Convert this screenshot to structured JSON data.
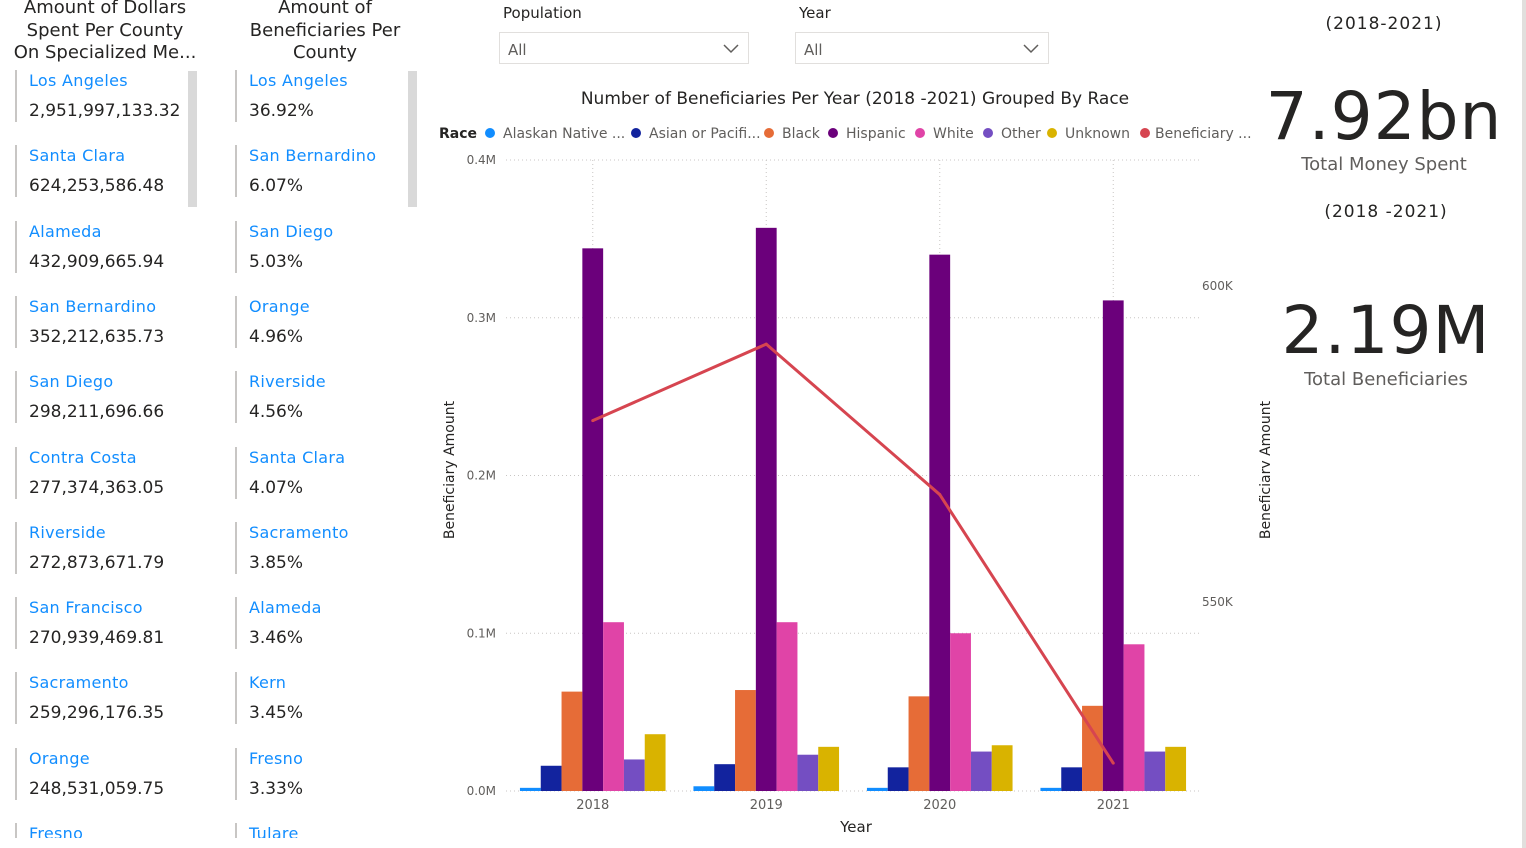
{
  "left_card": {
    "title_lines": [
      "Amount of Dollars",
      "Spent Per County",
      "On Specialized Me..."
    ],
    "items": [
      {
        "name": "Los Angeles",
        "value": "2,951,997,133.32"
      },
      {
        "name": "Santa Clara",
        "value": "624,253,586.48"
      },
      {
        "name": "Alameda",
        "value": "432,909,665.94"
      },
      {
        "name": "San Bernardino",
        "value": "352,212,635.73"
      },
      {
        "name": "San Diego",
        "value": "298,211,696.66"
      },
      {
        "name": "Contra Costa",
        "value": "277,374,363.05"
      },
      {
        "name": "Riverside",
        "value": "272,873,671.79"
      },
      {
        "name": "San Francisco",
        "value": "270,939,469.81"
      },
      {
        "name": "Sacramento",
        "value": "259,296,176.35"
      },
      {
        "name": "Orange",
        "value": "248,531,059.75"
      },
      {
        "name": "Fresno",
        "value": ""
      }
    ]
  },
  "mid_card": {
    "title_lines": [
      "Amount of",
      "Beneficiaries Per",
      "County"
    ],
    "items": [
      {
        "name": "Los Angeles",
        "value": "36.92%"
      },
      {
        "name": "San Bernardino",
        "value": "6.07%"
      },
      {
        "name": "San Diego",
        "value": "5.03%"
      },
      {
        "name": "Orange",
        "value": "4.96%"
      },
      {
        "name": "Riverside",
        "value": "4.56%"
      },
      {
        "name": "Santa Clara",
        "value": "4.07%"
      },
      {
        "name": "Sacramento",
        "value": "3.85%"
      },
      {
        "name": "Alameda",
        "value": "3.46%"
      },
      {
        "name": "Kern",
        "value": "3.45%"
      },
      {
        "name": "Fresno",
        "value": "3.33%"
      },
      {
        "name": "Tulare",
        "value": ""
      }
    ]
  },
  "slicers": {
    "population": {
      "label": "Population",
      "value": "All"
    },
    "year": {
      "label": "Year",
      "value": "All"
    }
  },
  "kpis": {
    "top_subtitle": "(2018-2021)",
    "money_value": "7.92bn",
    "money_label": "Total Money Spent",
    "mid_subtitle": "(2018 -2021)",
    "beneficiaries_value": "2.19M",
    "beneficiaries_label": "Total Beneficiaries"
  },
  "chart_data": {
    "type": "bar",
    "title": "Number of Beneficiaries Per Year (2018 -2021) Grouped By Race",
    "legend_title": "Race",
    "legend_position": "top",
    "xlabel": "Year",
    "ylabel": "Beneficiary Amount",
    "y2label": "Beneficiary Amount",
    "categories": [
      "2018",
      "2019",
      "2020",
      "2021"
    ],
    "ylim": [
      0,
      0.4
    ],
    "y_ticks": [
      "0.0M",
      "0.1M",
      "0.2M",
      "0.3M",
      "0.4M"
    ],
    "y2_ticks": [
      "550K",
      "600K"
    ],
    "y2_tick_values": [
      550000,
      600000
    ],
    "grid": true,
    "series": [
      {
        "name": "Alaskan Native ...",
        "color": "#118dff",
        "values": [
          0.002,
          0.003,
          0.002,
          0.002
        ]
      },
      {
        "name": "Asian or Pacifi...",
        "color": "#12239e",
        "values": [
          0.016,
          0.017,
          0.015,
          0.015
        ]
      },
      {
        "name": "Black",
        "color": "#e66c37",
        "values": [
          0.063,
          0.064,
          0.06,
          0.054
        ]
      },
      {
        "name": "Hispanic",
        "color": "#6b007b",
        "values": [
          0.344,
          0.357,
          0.34,
          0.311
        ]
      },
      {
        "name": "White",
        "color": "#e044a7",
        "values": [
          0.107,
          0.107,
          0.1,
          0.093
        ]
      },
      {
        "name": "Other",
        "color": "#744ec2",
        "values": [
          0.02,
          0.023,
          0.025,
          0.025
        ]
      },
      {
        "name": "Unknown",
        "color": "#d9b300",
        "values": [
          0.036,
          0.028,
          0.029,
          0.028
        ]
      }
    ],
    "line_series": {
      "name": "Beneficiary ...",
      "color": "#d64550",
      "axis": "secondary",
      "values": [
        578700,
        590800,
        567000,
        524500
      ]
    }
  }
}
